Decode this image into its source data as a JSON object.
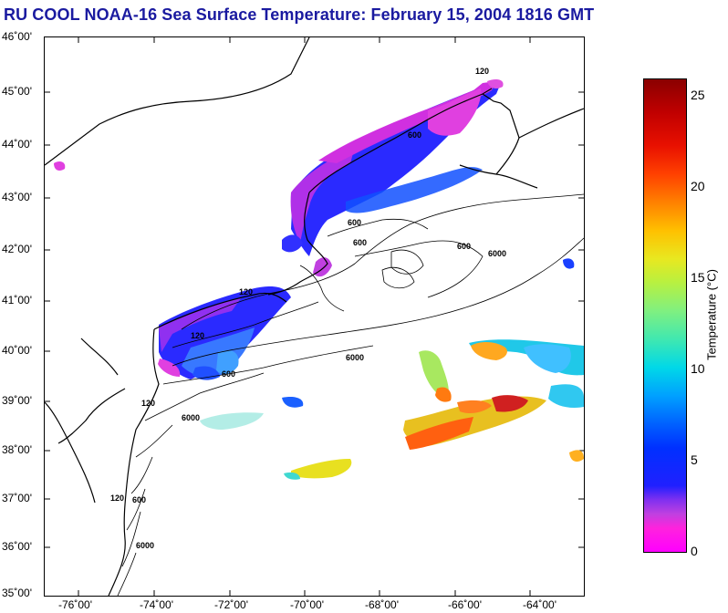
{
  "title": "RU COOL  NOAA-16  Sea Surface Temperature:  February 15, 2004 1816 GMT",
  "map": {
    "lat_labels": [
      "46˚00'",
      "45˚00'",
      "44˚00'",
      "43˚00'",
      "42˚00'",
      "41˚00'",
      "40˚00'",
      "39˚00'",
      "38˚00'",
      "37˚00'",
      "36˚00'",
      "35˚00'"
    ],
    "lon_labels": [
      "-76˚00'",
      "-74˚00'",
      "-72˚00'",
      "-70˚00'",
      "-68˚00'",
      "-66˚00'",
      "-64˚00'"
    ],
    "contour_labels": [
      "120",
      "600",
      "600",
      "600",
      "600",
      "6000",
      "120",
      "120",
      "6000",
      "600",
      "6000",
      "120",
      "600",
      "6000",
      "120"
    ]
  },
  "colorbar": {
    "ticks": [
      "25",
      "20",
      "15",
      "10",
      "5",
      "0"
    ],
    "label": "Temperature (°C)"
  }
}
